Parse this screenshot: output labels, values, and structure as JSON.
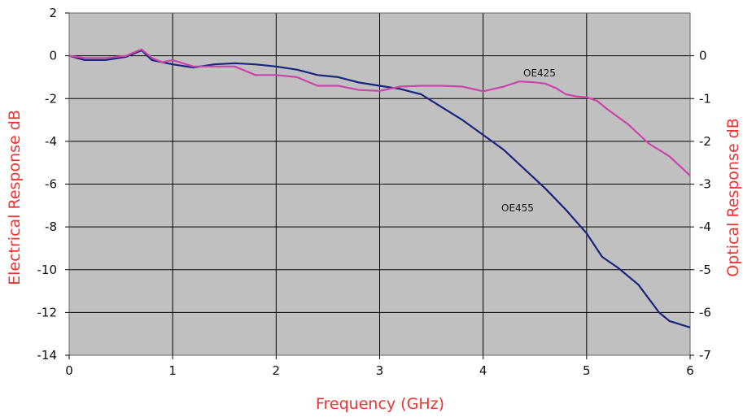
{
  "chart_data": {
    "type": "line",
    "title": "",
    "xlabel": "Frequency (GHz)",
    "ylabel": "Electrical Response dB",
    "y2label": "Optical Response dB",
    "xlim": [
      0,
      6
    ],
    "ylim": [
      -14,
      2
    ],
    "y2lim": [
      -7,
      1
    ],
    "x_ticks": [
      "0",
      "1",
      "2",
      "3",
      "4",
      "5",
      "6"
    ],
    "y_ticks": [
      "2",
      "0",
      "-2",
      "-4",
      "-6",
      "-8",
      "-10",
      "-12",
      "-14"
    ],
    "y2_ticks": [
      "0",
      "-1",
      "-2",
      "-3",
      "-4",
      "-5",
      "-6",
      "-7"
    ],
    "grid": true,
    "legend": "none",
    "plot_background": "#c0c0c0",
    "label_color": "#ee3333",
    "annotations": [
      {
        "text": "OE425",
        "series": "OE425"
      },
      {
        "text": "OE455",
        "series": "OE455"
      }
    ],
    "series": [
      {
        "name": "OE455",
        "axis": "left",
        "color": "#1a237e",
        "points": [
          [
            0,
            0
          ],
          [
            0.15,
            -0.2
          ],
          [
            0.35,
            -0.2
          ],
          [
            0.55,
            -0.05
          ],
          [
            0.7,
            0.25
          ],
          [
            0.8,
            -0.2
          ],
          [
            1.0,
            -0.4
          ],
          [
            1.2,
            -0.55
          ],
          [
            1.4,
            -0.4
          ],
          [
            1.6,
            -0.35
          ],
          [
            1.8,
            -0.4
          ],
          [
            2.0,
            -0.5
          ],
          [
            2.2,
            -0.65
          ],
          [
            2.4,
            -0.9
          ],
          [
            2.6,
            -1.0
          ],
          [
            2.8,
            -1.25
          ],
          [
            3.0,
            -1.4
          ],
          [
            3.2,
            -1.55
          ],
          [
            3.4,
            -1.8
          ],
          [
            3.6,
            -2.4
          ],
          [
            3.8,
            -3.0
          ],
          [
            4.0,
            -3.7
          ],
          [
            4.2,
            -4.4
          ],
          [
            4.4,
            -5.3
          ],
          [
            4.6,
            -6.2
          ],
          [
            4.8,
            -7.2
          ],
          [
            5.0,
            -8.3
          ],
          [
            5.15,
            -9.4
          ],
          [
            5.3,
            -9.9
          ],
          [
            5.5,
            -10.7
          ],
          [
            5.7,
            -12.0
          ],
          [
            5.8,
            -12.4
          ],
          [
            6.0,
            -12.7
          ]
        ]
      },
      {
        "name": "OE425",
        "axis": "right",
        "color": "#cc44aa",
        "points": [
          [
            0,
            0
          ],
          [
            0.15,
            -0.05
          ],
          [
            0.35,
            -0.05
          ],
          [
            0.55,
            0.0
          ],
          [
            0.7,
            0.15
          ],
          [
            0.8,
            -0.05
          ],
          [
            0.9,
            -0.15
          ],
          [
            1.0,
            -0.1
          ],
          [
            1.2,
            -0.25
          ],
          [
            1.4,
            -0.25
          ],
          [
            1.6,
            -0.25
          ],
          [
            1.8,
            -0.45
          ],
          [
            2.0,
            -0.45
          ],
          [
            2.2,
            -0.5
          ],
          [
            2.4,
            -0.7
          ],
          [
            2.6,
            -0.7
          ],
          [
            2.8,
            -0.8
          ],
          [
            3.0,
            -0.82
          ],
          [
            3.2,
            -0.72
          ],
          [
            3.4,
            -0.7
          ],
          [
            3.6,
            -0.7
          ],
          [
            3.8,
            -0.72
          ],
          [
            4.0,
            -0.83
          ],
          [
            4.2,
            -0.72
          ],
          [
            4.35,
            -0.6
          ],
          [
            4.5,
            -0.62
          ],
          [
            4.6,
            -0.65
          ],
          [
            4.7,
            -0.75
          ],
          [
            4.8,
            -0.9
          ],
          [
            4.9,
            -0.95
          ],
          [
            5.0,
            -0.97
          ],
          [
            5.1,
            -1.05
          ],
          [
            5.2,
            -1.25
          ],
          [
            5.4,
            -1.6
          ],
          [
            5.6,
            -2.05
          ],
          [
            5.8,
            -2.35
          ],
          [
            6.0,
            -2.8
          ]
        ]
      }
    ]
  }
}
